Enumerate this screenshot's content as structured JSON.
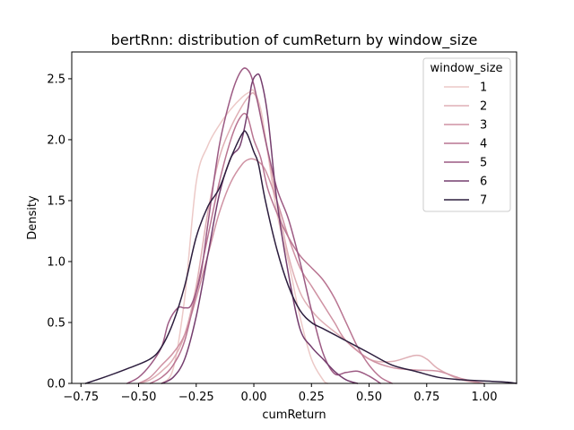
{
  "chart_data": {
    "type": "line",
    "title": "bertRnn: distribution of cumReturn by window_size",
    "xlabel": "cumReturn",
    "ylabel": "Density",
    "xlim": [
      -0.79,
      1.14
    ],
    "ylim": [
      0.0,
      2.72
    ],
    "xticks": [
      "−0.75",
      "−0.50",
      "−0.25",
      "0.00",
      "0.25",
      "0.50",
      "0.75",
      "1.00"
    ],
    "xtick_values": [
      -0.75,
      -0.5,
      -0.25,
      0.0,
      0.25,
      0.5,
      0.75,
      1.0
    ],
    "yticks": [
      "0.0",
      "0.5",
      "1.0",
      "1.5",
      "2.0",
      "2.5"
    ],
    "ytick_values": [
      0.0,
      0.5,
      1.0,
      1.5,
      2.0,
      2.5
    ],
    "grid": false,
    "legend": {
      "title": "window_size",
      "placement": "top-right"
    },
    "series": [
      {
        "name": "1",
        "color": "#ecc9c7",
        "x": [
          -0.4,
          -0.35,
          -0.3,
          -0.25,
          -0.2,
          -0.15,
          -0.1,
          -0.05,
          -0.02,
          0.0,
          0.03,
          0.06,
          0.1,
          0.15,
          0.2,
          0.25,
          0.3,
          0.32
        ],
        "y": [
          0.0,
          0.12,
          0.7,
          1.65,
          1.95,
          2.12,
          2.25,
          2.35,
          2.39,
          2.4,
          2.25,
          1.9,
          1.4,
          1.0,
          0.55,
          0.2,
          0.03,
          0.0
        ]
      },
      {
        "name": "2",
        "color": "#dfafb5",
        "x": [
          -0.5,
          -0.45,
          -0.4,
          -0.35,
          -0.3,
          -0.25,
          -0.2,
          -0.15,
          -0.1,
          -0.05,
          -0.02,
          0.0,
          0.02,
          0.06,
          0.1,
          0.15,
          0.2,
          0.25,
          0.3,
          0.4,
          0.5,
          0.6,
          0.7,
          0.75,
          0.8,
          0.9,
          1.0
        ],
        "y": [
          0.0,
          0.03,
          0.1,
          0.2,
          0.4,
          0.8,
          1.4,
          1.85,
          2.1,
          2.28,
          2.36,
          2.38,
          2.28,
          1.9,
          1.5,
          1.05,
          0.75,
          0.6,
          0.5,
          0.35,
          0.2,
          0.18,
          0.23,
          0.2,
          0.12,
          0.03,
          0.0
        ]
      },
      {
        "name": "3",
        "color": "#cf92a3",
        "x": [
          -0.5,
          -0.45,
          -0.4,
          -0.35,
          -0.3,
          -0.25,
          -0.2,
          -0.15,
          -0.1,
          -0.05,
          -0.02,
          0.0,
          0.02,
          0.05,
          0.1,
          0.15,
          0.2,
          0.25,
          0.3,
          0.35,
          0.4,
          0.5,
          0.6,
          0.7,
          0.8,
          0.9,
          1.0
        ],
        "y": [
          0.0,
          0.05,
          0.15,
          0.25,
          0.4,
          0.7,
          1.05,
          1.4,
          1.65,
          1.8,
          1.84,
          1.84,
          1.82,
          1.75,
          1.5,
          1.2,
          0.95,
          0.8,
          0.65,
          0.5,
          0.35,
          0.2,
          0.13,
          0.11,
          0.1,
          0.04,
          0.0
        ]
      },
      {
        "name": "4",
        "color": "#b97592",
        "x": [
          -0.45,
          -0.4,
          -0.35,
          -0.3,
          -0.25,
          -0.2,
          -0.15,
          -0.1,
          -0.06,
          -0.03,
          0.0,
          0.03,
          0.06,
          0.1,
          0.15,
          0.2,
          0.25,
          0.3,
          0.35,
          0.4,
          0.45,
          0.5,
          0.55,
          0.6
        ],
        "y": [
          0.0,
          0.05,
          0.15,
          0.35,
          0.75,
          1.2,
          1.65,
          2.0,
          2.18,
          2.2,
          2.0,
          1.85,
          1.6,
          1.4,
          1.2,
          1.05,
          0.95,
          0.85,
          0.7,
          0.5,
          0.3,
          0.15,
          0.05,
          0.0
        ]
      },
      {
        "name": "5",
        "color": "#9c5a83",
        "x": [
          -0.55,
          -0.5,
          -0.45,
          -0.4,
          -0.37,
          -0.33,
          -0.3,
          -0.27,
          -0.23,
          -0.2,
          -0.15,
          -0.1,
          -0.06,
          -0.03,
          0.0,
          0.05,
          0.1,
          0.15,
          0.2,
          0.25,
          0.3,
          0.35,
          0.4,
          0.45,
          0.5,
          0.55
        ],
        "y": [
          0.0,
          0.05,
          0.15,
          0.3,
          0.5,
          0.62,
          0.62,
          0.65,
          0.9,
          1.3,
          1.95,
          2.35,
          2.55,
          2.58,
          2.45,
          2.0,
          1.6,
          1.35,
          1.0,
          0.6,
          0.25,
          0.08,
          0.09,
          0.1,
          0.06,
          0.0
        ]
      },
      {
        "name": "6",
        "color": "#753e6e",
        "x": [
          -0.4,
          -0.35,
          -0.3,
          -0.25,
          -0.2,
          -0.15,
          -0.1,
          -0.06,
          -0.03,
          -0.01,
          0.01,
          0.03,
          0.06,
          0.1,
          0.15,
          0.2,
          0.25,
          0.3,
          0.35,
          0.4,
          0.45
        ],
        "y": [
          0.0,
          0.05,
          0.2,
          0.55,
          1.05,
          1.55,
          1.85,
          1.95,
          2.2,
          2.45,
          2.53,
          2.5,
          2.2,
          1.5,
          0.9,
          0.45,
          0.3,
          0.2,
          0.1,
          0.03,
          0.0
        ]
      },
      {
        "name": "7",
        "color": "#2d1e3e",
        "x": [
          -0.73,
          -0.65,
          -0.55,
          -0.45,
          -0.4,
          -0.35,
          -0.3,
          -0.25,
          -0.2,
          -0.15,
          -0.1,
          -0.05,
          -0.03,
          0.0,
          0.02,
          0.05,
          0.1,
          0.15,
          0.2,
          0.25,
          0.3,
          0.35,
          0.4,
          0.5,
          0.6,
          0.7,
          0.8,
          0.9,
          1.0,
          1.1,
          1.14
        ],
        "y": [
          0.0,
          0.05,
          0.12,
          0.2,
          0.3,
          0.5,
          0.8,
          1.2,
          1.45,
          1.6,
          1.85,
          2.05,
          2.05,
          1.9,
          1.8,
          1.5,
          1.1,
          0.8,
          0.6,
          0.5,
          0.45,
          0.4,
          0.35,
          0.25,
          0.15,
          0.1,
          0.05,
          0.03,
          0.02,
          0.01,
          0.0
        ]
      }
    ]
  }
}
